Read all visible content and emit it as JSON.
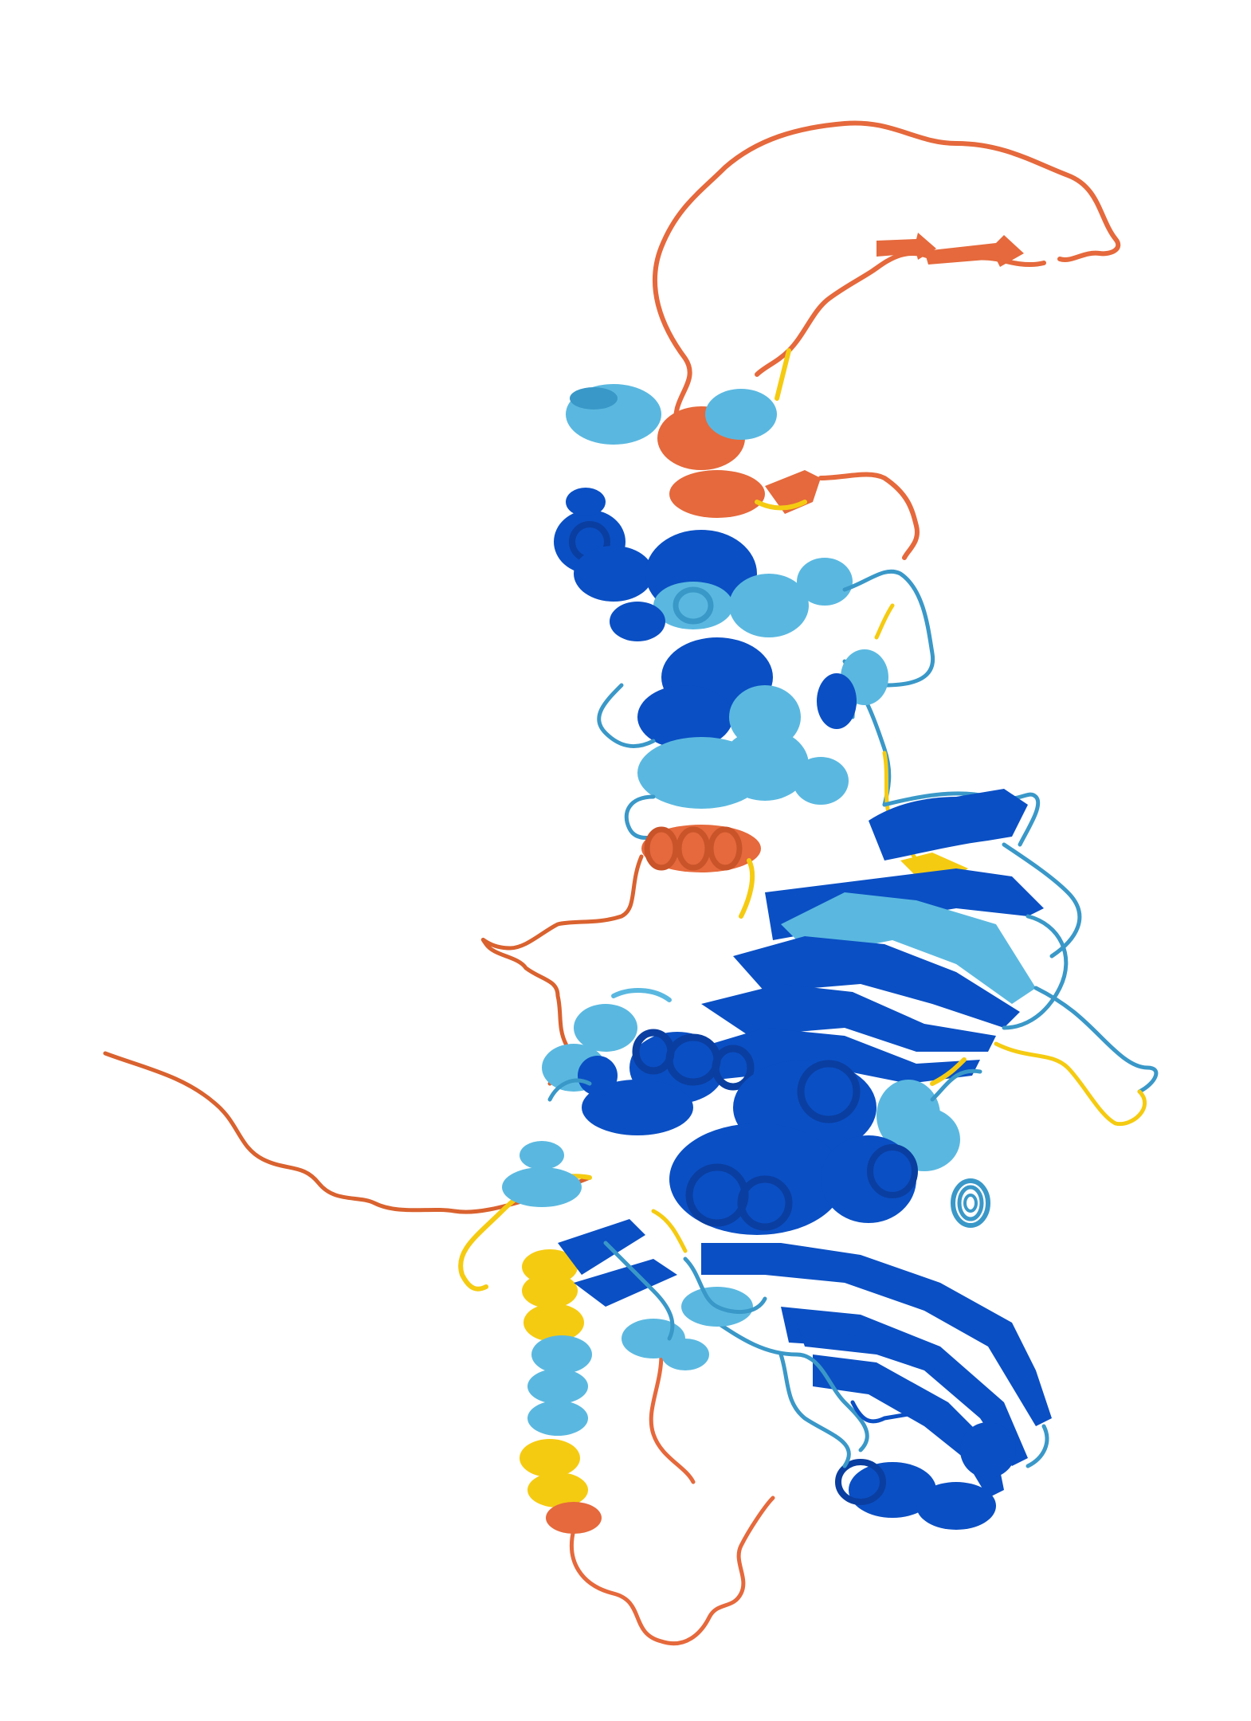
{
  "image": {
    "subject": "protein-structure-cartoon",
    "background_color": "#ffffff"
  },
  "confidence_colors": {
    "very_high": "#0053D6",
    "confident": "#65CBF3",
    "low": "#FFDB13",
    "very_low": "#FF7D45"
  },
  "render_colors": {
    "very_high": "#0a4fc4",
    "confident": "#5ab8e0",
    "low": "#f5cb12",
    "very_low": "#e5693c"
  }
}
